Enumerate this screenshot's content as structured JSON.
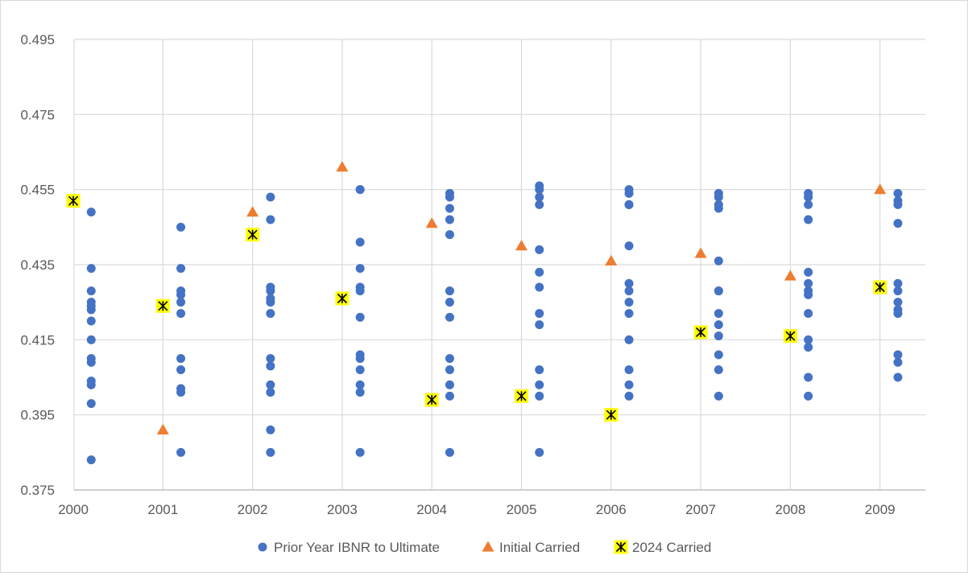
{
  "chart_data": {
    "type": "scatter",
    "title": "",
    "xlabel": "",
    "ylabel": "",
    "xlim": [
      2000,
      2009
    ],
    "ylim": [
      0.375,
      0.495
    ],
    "x_ticks": [
      "2000",
      "2001",
      "2002",
      "2003",
      "2004",
      "2005",
      "2006",
      "2007",
      "2008",
      "2009"
    ],
    "y_ticks": [
      "0.375",
      "0.395",
      "0.415",
      "0.435",
      "0.455",
      "0.475",
      "0.495"
    ],
    "grid": true,
    "legend_position": "bottom",
    "series": [
      {
        "name": "Prior Year IBNR to Ultimate",
        "marker": "circle",
        "color": "#4472C4",
        "x_offset": 0.2,
        "points": [
          {
            "year": 2000,
            "values": [
              0.449,
              0.434,
              0.428,
              0.425,
              0.424,
              0.423,
              0.42,
              0.415,
              0.41,
              0.409,
              0.404,
              0.403,
              0.398,
              0.383
            ]
          },
          {
            "year": 2001,
            "values": [
              0.445,
              0.434,
              0.428,
              0.427,
              0.425,
              0.422,
              0.41,
              0.407,
              0.402,
              0.401,
              0.385
            ]
          },
          {
            "year": 2002,
            "values": [
              0.453,
              0.447,
              0.429,
              0.428,
              0.426,
              0.425,
              0.422,
              0.41,
              0.408,
              0.403,
              0.401,
              0.391,
              0.385
            ]
          },
          {
            "year": 2003,
            "values": [
              0.455,
              0.455,
              0.441,
              0.434,
              0.429,
              0.428,
              0.421,
              0.411,
              0.41,
              0.407,
              0.403,
              0.401,
              0.385
            ]
          },
          {
            "year": 2004,
            "values": [
              0.454,
              0.453,
              0.45,
              0.447,
              0.443,
              0.428,
              0.425,
              0.421,
              0.41,
              0.407,
              0.403,
              0.4,
              0.385
            ]
          },
          {
            "year": 2005,
            "values": [
              0.456,
              0.455,
              0.453,
              0.451,
              0.439,
              0.433,
              0.429,
              0.422,
              0.419,
              0.407,
              0.403,
              0.4,
              0.385
            ]
          },
          {
            "year": 2006,
            "values": [
              0.455,
              0.454,
              0.451,
              0.451,
              0.44,
              0.43,
              0.428,
              0.425,
              0.422,
              0.415,
              0.407,
              0.403,
              0.4
            ]
          },
          {
            "year": 2007,
            "values": [
              0.454,
              0.453,
              0.451,
              0.45,
              0.436,
              0.428,
              0.428,
              0.422,
              0.419,
              0.416,
              0.411,
              0.407,
              0.4
            ]
          },
          {
            "year": 2008,
            "values": [
              0.454,
              0.453,
              0.451,
              0.447,
              0.433,
              0.43,
              0.428,
              0.427,
              0.422,
              0.415,
              0.413,
              0.405,
              0.4
            ]
          },
          {
            "year": 2009,
            "values": [
              0.454,
              0.452,
              0.451,
              0.446,
              0.43,
              0.428,
              0.425,
              0.423,
              0.422,
              0.411,
              0.409,
              0.405
            ]
          }
        ]
      },
      {
        "name": "Initial Carried",
        "marker": "triangle",
        "color": "#ED7D31",
        "x": [
          2001,
          2002,
          2003,
          2004,
          2005,
          2006,
          2007,
          2008,
          2009
        ],
        "y": [
          0.391,
          0.449,
          0.461,
          0.446,
          0.44,
          0.436,
          0.438,
          0.432,
          0.455
        ]
      },
      {
        "name": "2024 Carried",
        "marker": "x-square",
        "color": "#FFFF00",
        "x": [
          2000,
          2001,
          2002,
          2003,
          2004,
          2005,
          2006,
          2007,
          2008,
          2009
        ],
        "y": [
          0.452,
          0.424,
          0.443,
          0.426,
          0.399,
          0.4,
          0.395,
          0.417,
          0.416,
          0.429
        ]
      }
    ]
  }
}
